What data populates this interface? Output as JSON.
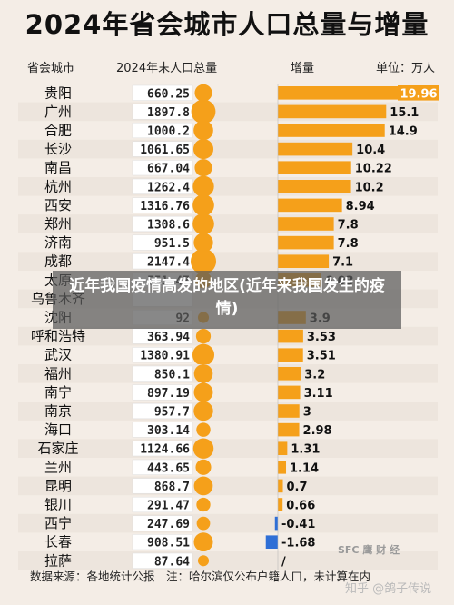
{
  "title": "2024年省会城市人口总量与增量",
  "headers": {
    "city": "省会城市",
    "population": "2024年末人口总量",
    "increase": "增量",
    "unit": "单位：万人"
  },
  "footer": "数据来源：各地统计公报　注：哈尔滨仅公布户籍人口，未计算在内",
  "overlay_caption": "近年我国疫情高发的地区(近年来我国发生的疫情)",
  "watermarks": {
    "top": "SFC 鹰 财 经",
    "bottom": "知乎 @鸽子传说"
  },
  "colors": {
    "bar": "#f5a01a",
    "bar_negative": "#2f6fd6",
    "highlight_label_bg": "#f5a01a",
    "row_alt": "#ede5dd"
  },
  "chart_data": {
    "type": "bar",
    "title": "2024年省会城市人口总量与增量",
    "categories": [
      "贵阳",
      "广州",
      "合肥",
      "长沙",
      "南昌",
      "杭州",
      "西安",
      "郑州",
      "济南",
      "成都",
      "太原",
      "乌鲁木齐",
      "沈阳",
      "呼和浩特",
      "武汉",
      "福州",
      "南宁",
      "南京",
      "海口",
      "石家庄",
      "兰州",
      "昆明",
      "银川",
      "西宁",
      "长春",
      "拉萨"
    ],
    "population": [
      "660.25",
      "1897.8",
      "1000.2",
      "1061.65",
      "667.04",
      "1262.4",
      "1316.76",
      "1308.6",
      "951.5",
      "2147.4",
      "551.47",
      "",
      "92",
      "363.94",
      "1380.91",
      "850.1",
      "897.19",
      "957.7",
      "303.14",
      "1124.66",
      "443.65",
      "868.7",
      "291.47",
      "247.69",
      "908.51",
      "87.64"
    ],
    "increase": [
      19.96,
      15.1,
      14.9,
      10.4,
      10.22,
      10.2,
      8.94,
      7.8,
      7.8,
      7.1,
      6.03,
      null,
      3.9,
      3.53,
      3.51,
      3.2,
      3.11,
      3,
      2.98,
      1.31,
      1.14,
      0.7,
      0.66,
      -0.41,
      -1.68,
      null
    ],
    "increase_labels": [
      "19.96",
      "15.1",
      "14.9",
      "10.4",
      "10.22",
      "10.2",
      "8.94",
      "7.8",
      "7.8",
      "7.1",
      "6.03",
      "",
      "3.9",
      "3.53",
      "3.51",
      "3.2",
      "3.11",
      "3",
      "2.98",
      "1.31",
      "1.14",
      "0.7",
      "0.66",
      "-0.41",
      "-1.68",
      "/"
    ],
    "xlim": [
      -2,
      20
    ]
  }
}
